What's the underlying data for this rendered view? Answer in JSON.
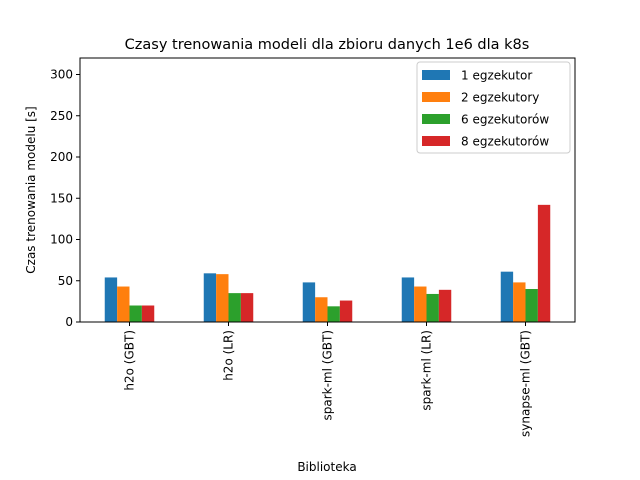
{
  "chart_data": {
    "type": "bar",
    "title": "Czasy trenowania modeli dla zbioru danych 1e6 dla k8s",
    "xlabel": "Biblioteka",
    "ylabel": "Czas trenowania modelu [s]",
    "ylim": [
      0,
      320
    ],
    "yticks": [
      0,
      50,
      100,
      150,
      200,
      250,
      300
    ],
    "legend_position": "top-right",
    "grid": false,
    "categories": [
      "h2o (GBT)",
      "h2o (LR)",
      "spark-ml (GBT)",
      "spark-ml (LR)",
      "synapse-ml (GBT)"
    ],
    "series": [
      {
        "name": "1 egzekutor",
        "color": "#1f77b4",
        "values": [
          54,
          59,
          48,
          54,
          61
        ]
      },
      {
        "name": "2 egzekutory",
        "color": "#ff7f0e",
        "values": [
          43,
          58,
          30,
          43,
          48
        ]
      },
      {
        "name": "6 egzekutorów",
        "color": "#2ca02c",
        "values": [
          20,
          35,
          19,
          34,
          40
        ]
      },
      {
        "name": "8 egzekutorów",
        "color": "#d62728",
        "values": [
          20,
          35,
          26,
          39,
          142
        ]
      }
    ]
  }
}
